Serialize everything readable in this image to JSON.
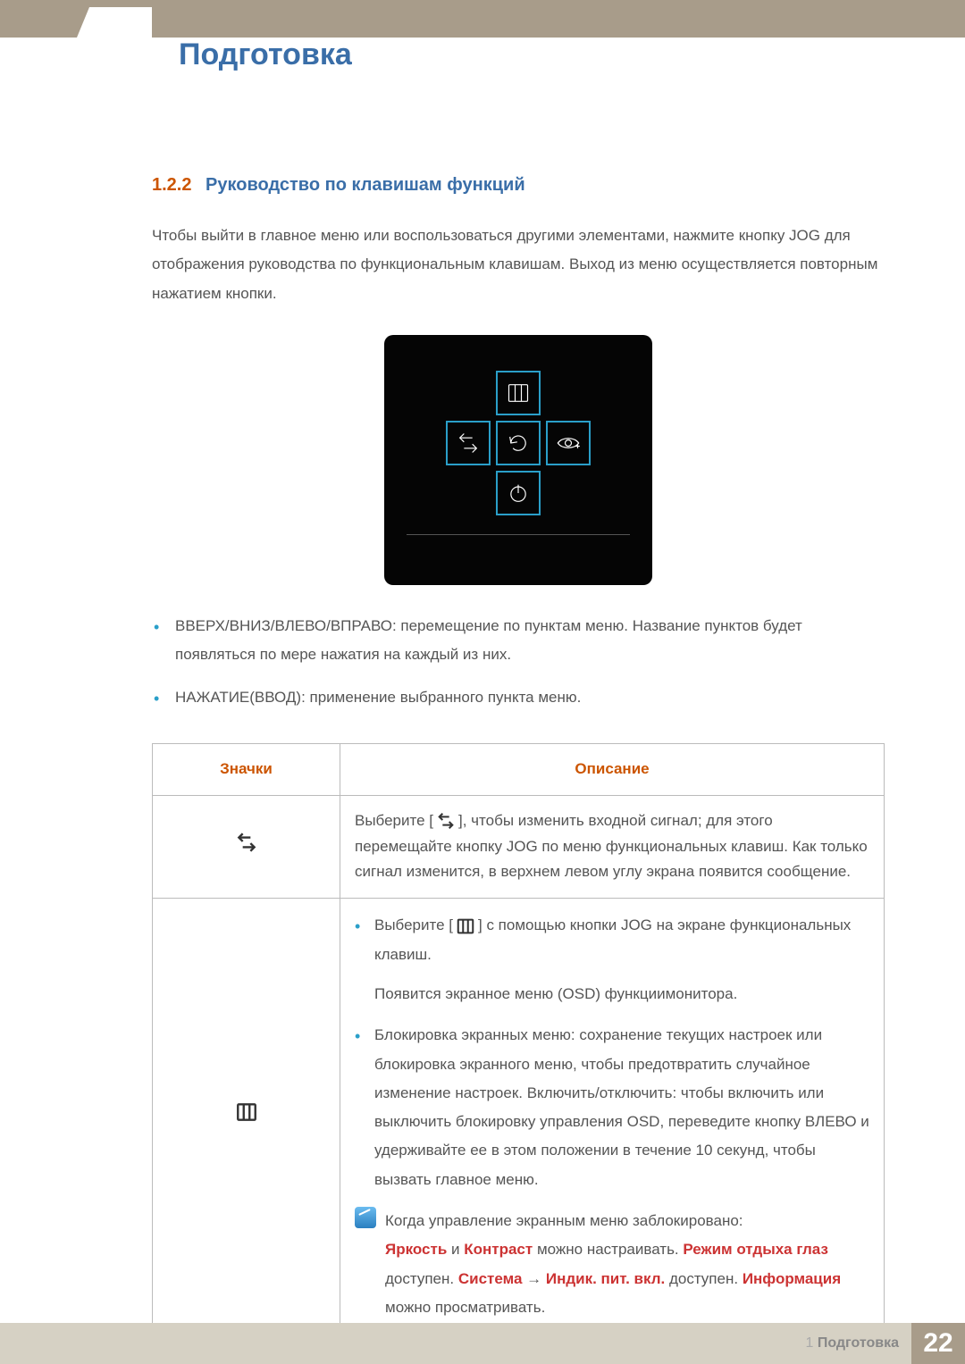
{
  "chapter_title": "Подготовка",
  "section": {
    "number": "1.2.2",
    "title": "Руководство по клавишам функций"
  },
  "intro": "Чтобы выйти в главное меню или воспользоваться другими элементами, нажмите кнопку JOG для отображения руководства по функциональным клавишам. Выход из меню осуществляется повторным нажатием кнопки.",
  "osd": {
    "background_color": "#050505",
    "border_color": "#2a9fc9",
    "icon_color": "#ffffff",
    "button_names": [
      "menu-icon",
      "source-icon",
      "return-icon",
      "eye-saver-icon",
      "power-icon"
    ]
  },
  "bullets": [
    "ВВЕРХ/ВНИЗ/ВЛЕВО/ВПРАВО: перемещение по пунктам меню. Название пунктов будет появляться по мере нажатия на каждый из них.",
    "НАЖАТИЕ(ВВОД): применение выбранного пункта меню."
  ],
  "table": {
    "headers": [
      "Значки",
      "Описание"
    ],
    "rows": [
      {
        "icon_name": "source-icon",
        "desc_prefix": "Выберите [",
        "desc_suffix": "], чтобы изменить входной сигнал; для этого перемещайте кнопку JOG по меню функциональных клавиш. Как только сигнал изменится, в верхнем левом углу экрана появится сообщение."
      },
      {
        "icon_name": "menu-icon",
        "bullets": [
          {
            "prefix": "Выберите [",
            "suffix": "] с помощью кнопки JOG на экране функциональных клавиш.",
            "para": "Появится экранное меню (OSD) функциимонитора."
          },
          {
            "text": "Блокировка экранных меню: сохранение текущих настроек или блокировка экранного меню, чтобы предотвратить случайное изменение настроек. Включить/отключить: чтобы включить или выключить блокировку управления OSD, переведите кнопку ВЛЕВО и удерживайте ее в этом положении в течение 10 секунд, чтобы вызвать главное меню."
          }
        ],
        "note": {
          "intro": "Когда управление экранным меню заблокировано:",
          "rich_parts": [
            {
              "text": "Яркость",
              "red": true
            },
            {
              "text": " и ",
              "red": false
            },
            {
              "text": "Контраст",
              "red": true
            },
            {
              "text": " можно настраивать. ",
              "red": false
            },
            {
              "text": "Режим отдыха глаз",
              "red": true
            },
            {
              "text": " доступен. ",
              "red": false
            },
            {
              "text": "Система",
              "red": true
            },
            {
              "text": " → ",
              "red": false
            },
            {
              "text": "Индик. пит. вкл.",
              "red": true
            },
            {
              "text": " доступен. ",
              "red": false
            },
            {
              "text": "Информация",
              "red": true
            },
            {
              "text": " можно просматривать.",
              "red": false
            }
          ]
        }
      }
    ]
  },
  "footer": {
    "chapter_ref": "1 Подготовка",
    "page": "22",
    "bg_color": "#d6d1c4",
    "accent_color": "#a89c8a"
  },
  "colors": {
    "heading_blue": "#3a6ea8",
    "heading_orange": "#cc5500",
    "bullet_blue": "#2a9fc9",
    "text_gray": "#555555",
    "red": "#cc3333"
  },
  "fonts": {
    "body_size_pt": 13,
    "title_size_pt": 26,
    "section_size_pt": 15
  }
}
